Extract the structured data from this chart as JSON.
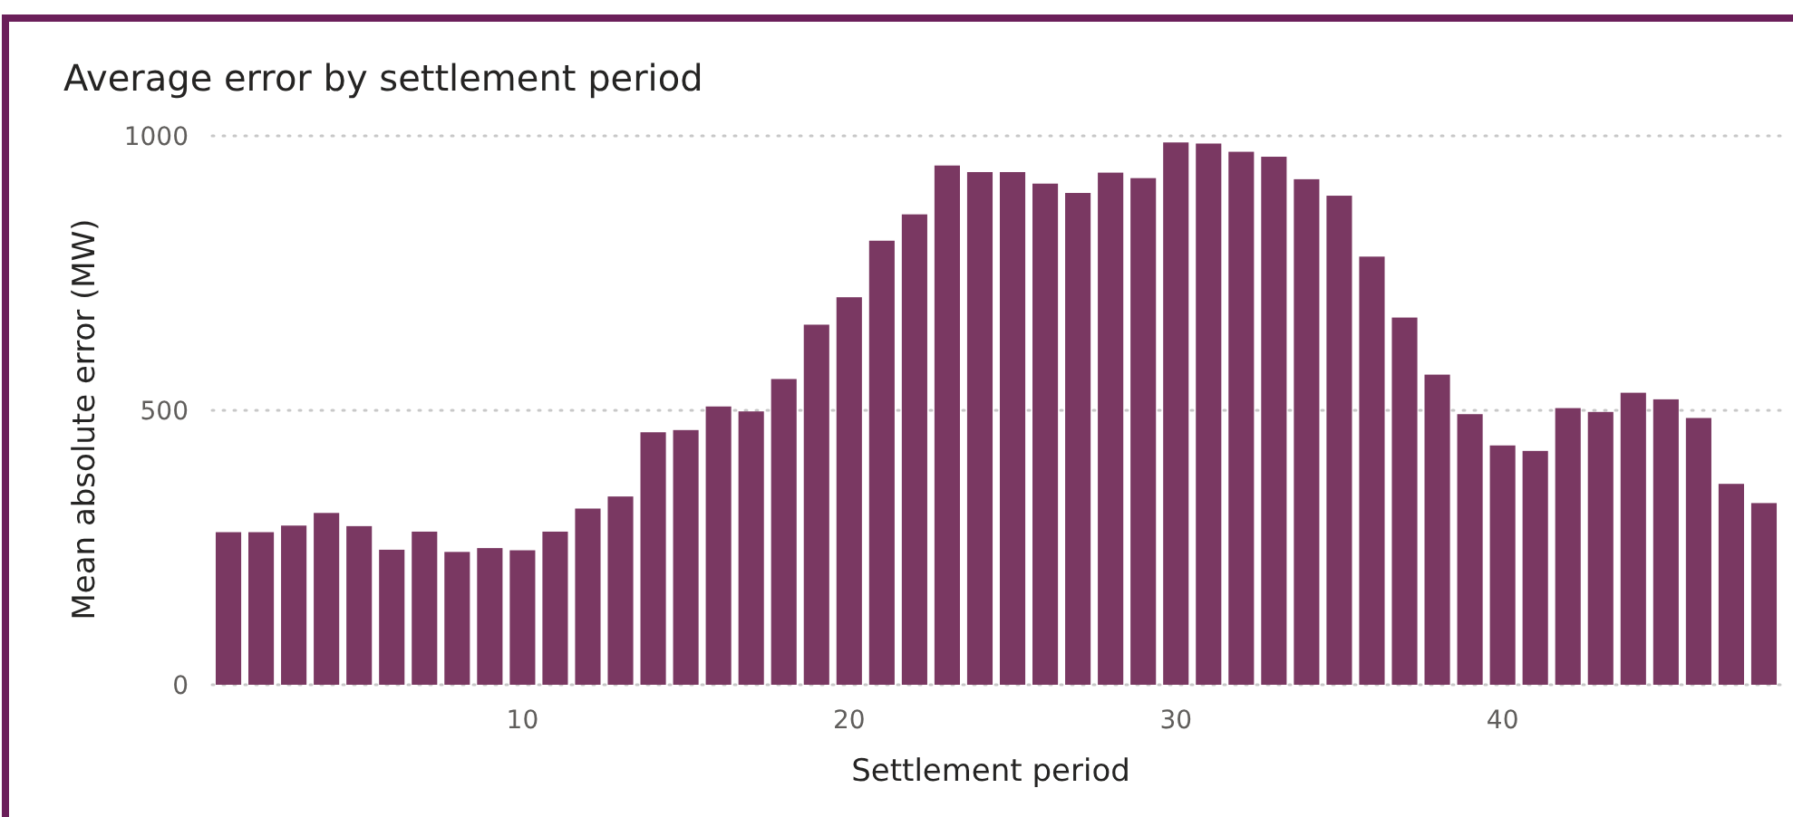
{
  "chart_data": {
    "type": "bar",
    "title": "Average error by settlement period",
    "xlabel": "Settlement period",
    "ylabel": "Mean absolute error (MW)",
    "x": [
      1,
      2,
      3,
      4,
      5,
      6,
      7,
      8,
      9,
      10,
      11,
      12,
      13,
      14,
      15,
      16,
      17,
      18,
      19,
      20,
      21,
      22,
      23,
      24,
      25,
      26,
      27,
      28,
      29,
      30,
      31,
      32,
      33,
      34,
      35,
      36,
      37,
      38,
      39,
      40,
      41,
      42,
      43,
      44,
      45,
      46,
      47,
      48
    ],
    "values": [
      278,
      278,
      290,
      313,
      289,
      246,
      279,
      242,
      249,
      245,
      279,
      321,
      343,
      460,
      464,
      507,
      498,
      557,
      656,
      706,
      809,
      857,
      946,
      934,
      934,
      913,
      896,
      933,
      923,
      988,
      986,
      971,
      962,
      921,
      891,
      780,
      669,
      565,
      493,
      436,
      426,
      504,
      497,
      532,
      520,
      486,
      366,
      331
    ],
    "color": "#7a3862",
    "xlim": [
      0.5,
      48.5
    ],
    "xticks": [
      10,
      20,
      30,
      40
    ],
    "ylim": [
      0,
      1000
    ],
    "yticks": [
      0,
      500,
      1000
    ],
    "grid": "y"
  }
}
